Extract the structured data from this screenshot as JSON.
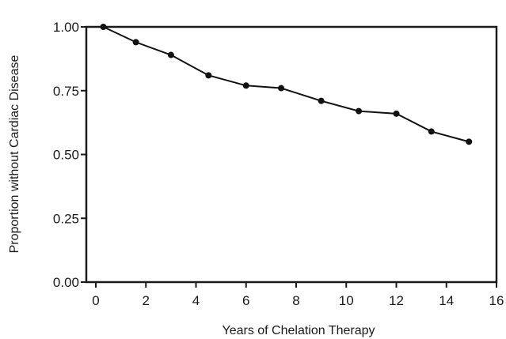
{
  "chart_data": {
    "type": "line",
    "title": "",
    "xlabel": "Years of Chelation Therapy",
    "ylabel": "Proportion without Cardiac Disease",
    "xlim": [
      0,
      16
    ],
    "ylim": [
      0,
      1
    ],
    "x_ticks": [
      0,
      2,
      4,
      6,
      8,
      10,
      12,
      14,
      16
    ],
    "y_ticks": [
      0,
      0.25,
      0.5,
      0.75,
      1
    ],
    "x_tick_labels": [
      "0",
      "2",
      "4",
      "6",
      "8",
      "10",
      "12",
      "14",
      "16"
    ],
    "y_tick_labels": [
      "0.00",
      "0.25",
      "0.50",
      "0.75",
      "1.00"
    ],
    "grid": false,
    "series": [
      {
        "x": [
          0.3,
          1.6,
          3.0,
          4.5,
          6.0,
          7.4,
          9.0,
          10.5,
          12.0,
          13.4,
          14.9
        ],
        "values": [
          1.0,
          0.94,
          0.89,
          0.81,
          0.77,
          0.76,
          0.71,
          0.67,
          0.66,
          0.59,
          0.55
        ]
      }
    ]
  }
}
